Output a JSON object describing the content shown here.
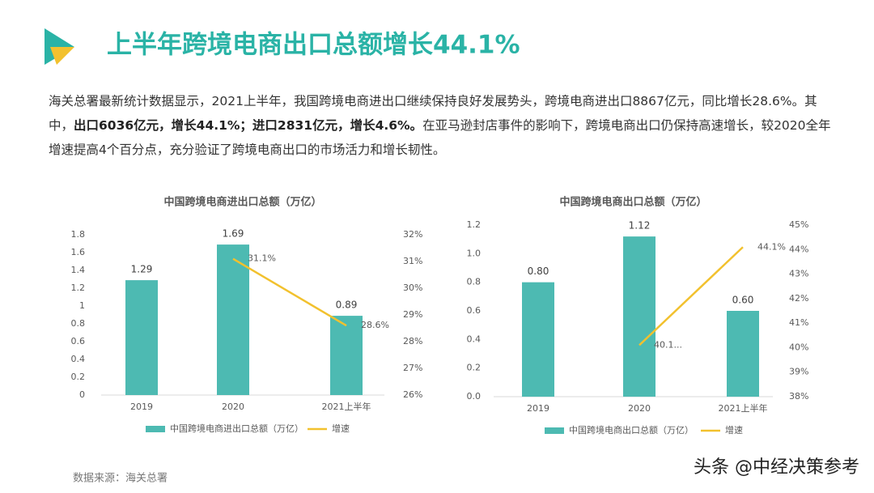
{
  "header": {
    "title": "上半年跨境电商出口总额增长44.1%"
  },
  "paragraph": [
    {
      "text": "海关总署最新统计数据显示，2021上半年，我国跨境电商进出口继续保持良好发展势头，跨境电商进出口8867亿元，同比增长28.6%。其中，",
      "bold": false
    },
    {
      "text": "出口6036亿元，增长44.1%；进口2831亿元，增长4.6%。",
      "bold": true
    },
    {
      "text": "在亚马逊封店事件的影响下，跨境电商出口仍保持高速增长，较2020全年增速提高4个百分点，充分验证了跨境电商出口的市场活力和增长韧性。",
      "bold": false
    }
  ],
  "chart_data": [
    {
      "type": "bar_line",
      "title": "中国跨境电商进出口总额（万亿）",
      "categories": [
        "2019",
        "2020",
        "2021上半年"
      ],
      "series": [
        {
          "name": "中国跨境电商进出口总额（万亿）",
          "color": "#4dbab2",
          "values": [
            1.29,
            1.69,
            0.89
          ]
        },
        {
          "name": "增速",
          "color": "#f2c12e",
          "axis": "y2",
          "values": [
            null,
            31.1,
            28.6
          ],
          "value_labels": [
            null,
            "31.1%",
            "28.6%"
          ]
        }
      ],
      "ylim": [
        0,
        1.8
      ],
      "yticks": [
        0,
        0.2,
        0.4,
        0.6,
        0.8,
        1,
        1.2,
        1.4,
        1.6,
        1.8
      ],
      "y2lim": [
        26,
        32
      ],
      "y2ticks": [
        {
          "value": 26,
          "label": "26%"
        },
        {
          "value": 27,
          "label": "27%"
        },
        {
          "value": 28,
          "label": "28%"
        },
        {
          "value": 29,
          "label": "29%"
        },
        {
          "value": 30,
          "label": "30%"
        },
        {
          "value": 31,
          "label": "31%"
        },
        {
          "value": 32,
          "label": "32%"
        }
      ]
    },
    {
      "type": "bar_line",
      "title": "中国跨境电商出口总额（万亿）",
      "categories": [
        "2019",
        "2020",
        "2021上半年"
      ],
      "series": [
        {
          "name": "中国跨境电商出口总额（万亿）",
          "color": "#4dbab2",
          "values": [
            0.8,
            1.12,
            0.6
          ],
          "value_labels": [
            "0.80",
            "1.12",
            "0.60"
          ]
        },
        {
          "name": "增速",
          "color": "#f2c12e",
          "axis": "y2",
          "values": [
            null,
            40.1,
            44.1
          ],
          "value_labels": [
            null,
            "40.1...",
            "44.1%"
          ]
        }
      ],
      "ylim": [
        0,
        1.2
      ],
      "yticks": [
        {
          "value": 0,
          "label": "0.0"
        },
        0.2,
        0.4,
        0.6,
        0.8,
        {
          "value": 1,
          "label": "1.0"
        },
        1.2
      ],
      "y2lim": [
        38,
        45
      ],
      "y2ticks": [
        {
          "value": 38,
          "label": "38%"
        },
        {
          "value": 39,
          "label": "39%"
        },
        {
          "value": 40,
          "label": "40%"
        },
        {
          "value": 41,
          "label": "41%"
        },
        {
          "value": 42,
          "label": "42%"
        },
        {
          "value": 43,
          "label": "43%"
        },
        {
          "value": 44,
          "label": "44%"
        },
        {
          "value": 45,
          "label": "45%"
        }
      ]
    }
  ],
  "source": "数据来源：海关总署",
  "watermark": "头条 @中经决策参考"
}
